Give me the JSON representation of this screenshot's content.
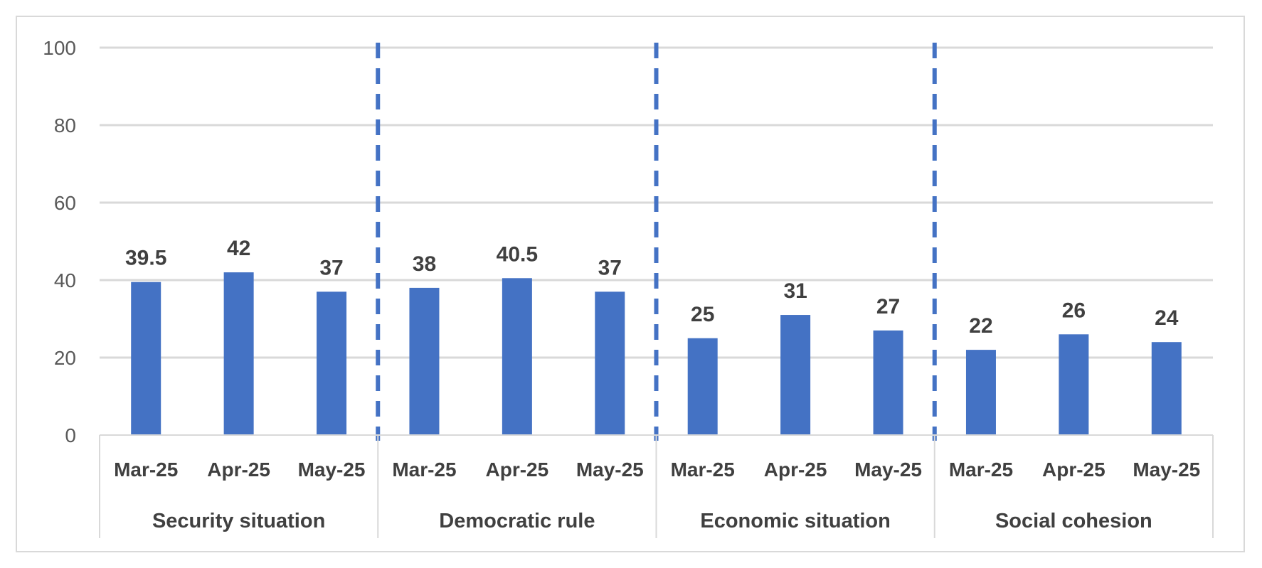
{
  "chart_data": {
    "type": "bar",
    "groups": [
      {
        "name": "Security situation",
        "categories": [
          "Mar-25",
          "Apr-25",
          "May-25"
        ],
        "values": [
          39.5,
          42,
          37
        ],
        "labels": [
          "39.5",
          "42",
          "37"
        ]
      },
      {
        "name": "Democratic rule",
        "categories": [
          "Mar-25",
          "Apr-25",
          "May-25"
        ],
        "values": [
          38,
          40.5,
          37
        ],
        "labels": [
          "38",
          "40.5",
          "37"
        ]
      },
      {
        "name": "Economic situation",
        "categories": [
          "Mar-25",
          "Apr-25",
          "May-25"
        ],
        "values": [
          25,
          31,
          27
        ],
        "labels": [
          "25",
          "31",
          "27"
        ]
      },
      {
        "name": "Social cohesion",
        "categories": [
          "Mar-25",
          "Apr-25",
          "May-25"
        ],
        "values": [
          22,
          26,
          24
        ],
        "labels": [
          "22",
          "26",
          "24"
        ]
      }
    ],
    "ylim": [
      0,
      100
    ],
    "yticks": [
      "0",
      "20",
      "40",
      "60",
      "80",
      "100"
    ],
    "grid": true,
    "legend": "none",
    "group_separators": "dashed",
    "colors": {
      "bar": "#4472c4",
      "separator": "#4472c4",
      "grid": "#d9d9d9",
      "axis": "#d9d9d9"
    }
  }
}
